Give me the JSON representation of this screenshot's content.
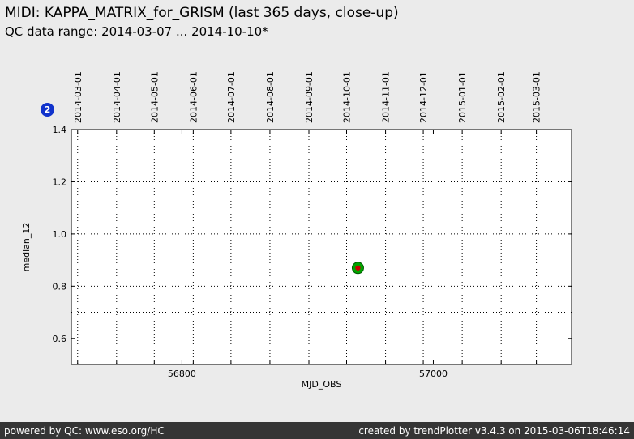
{
  "header": {
    "title": "MIDI: KAPPA_MATRIX_for_GRISM (last 365 days, close-up)",
    "subtitle": "QC data range: 2014-03-07 ... 2014-10-10*"
  },
  "badge": {
    "label": "2",
    "color": "#1133cc"
  },
  "footer": {
    "left": "powered by QC: www.eso.org/HC",
    "right": "created by trendPlotter v3.4.3 on 2015-03-06T18:46:14"
  },
  "chart_data": {
    "type": "scatter",
    "title": "MIDI: KAPPA_MATRIX_for_GRISM (last 365 days, close-up)",
    "subtitle": "QC data range: 2014-03-07 ... 2014-10-10*",
    "xlabel": "MJD_OBS",
    "ylabel": "median_12",
    "xlim": [
      56712,
      57110
    ],
    "ylim": [
      0.5,
      1.4
    ],
    "x_ticks": [
      56800,
      57000
    ],
    "y_ticks": [
      0.6,
      0.8,
      1.0,
      1.2,
      1.4
    ],
    "grid": true,
    "grid_y_values": [
      0.7,
      0.8,
      1.0,
      1.2
    ],
    "top_axis_dates": [
      {
        "label": "2014-03-01",
        "mjd": 56717
      },
      {
        "label": "2014-04-01",
        "mjd": 56748
      },
      {
        "label": "2014-05-01",
        "mjd": 56778
      },
      {
        "label": "2014-06-01",
        "mjd": 56809
      },
      {
        "label": "2014-07-01",
        "mjd": 56839
      },
      {
        "label": "2014-08-01",
        "mjd": 56870
      },
      {
        "label": "2014-09-01",
        "mjd": 56901
      },
      {
        "label": "2014-10-01",
        "mjd": 56931
      },
      {
        "label": "2014-11-01",
        "mjd": 56962
      },
      {
        "label": "2014-12-01",
        "mjd": 56992
      },
      {
        "label": "2015-01-01",
        "mjd": 57023
      },
      {
        "label": "2015-02-01",
        "mjd": 57054
      },
      {
        "label": "2015-03-01",
        "mjd": 57082
      }
    ],
    "marker": {
      "ring_color": "#00a400",
      "edge_color": "#005a00",
      "center_color": "#cc0000"
    },
    "points": [
      {
        "x": 56940,
        "y": 0.87
      }
    ],
    "legend": "none"
  }
}
